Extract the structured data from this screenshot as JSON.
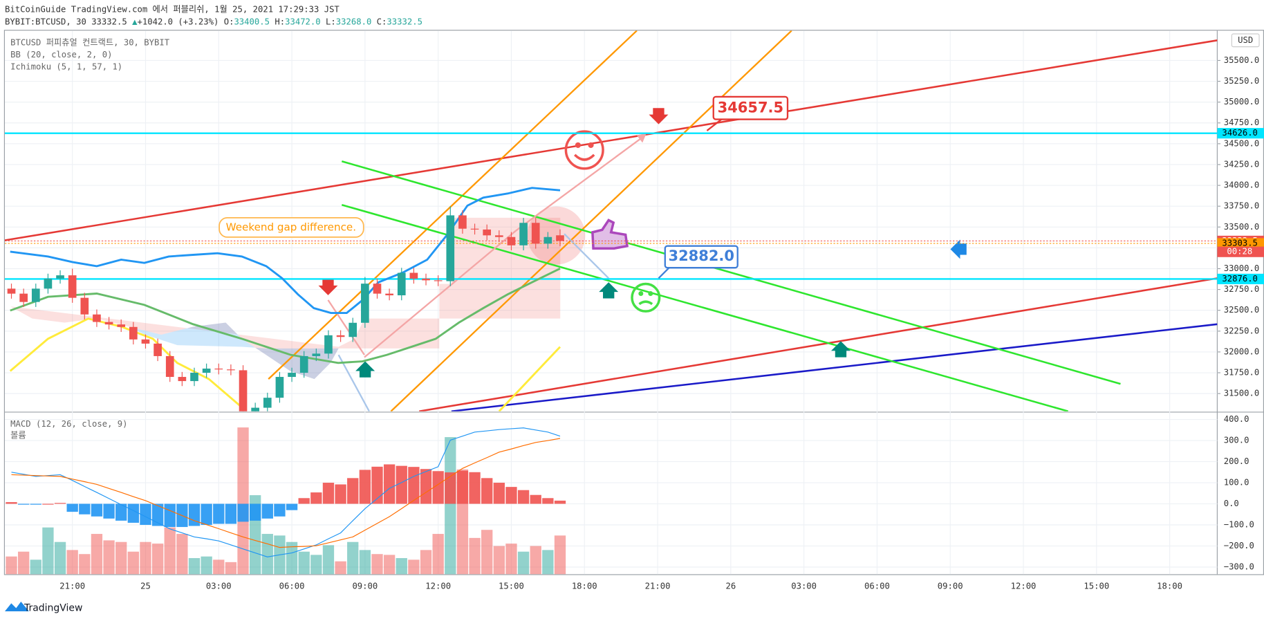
{
  "header": {
    "title": "BitCoinGuide TradingView.com 에서 퍼블리쉬, 1월 25, 2021 17:29:33 JST",
    "symbol": "BYBIT:BTCUSD, 30",
    "last": "33332.5",
    "arrow": "▲",
    "change": "+1042.0 (+3.23%)",
    "ohlc": [
      {
        "key": "O:",
        "value": "33400.5"
      },
      {
        "key": "H:",
        "value": "33472.0"
      },
      {
        "key": "L:",
        "value": "33268.0"
      },
      {
        "key": "C:",
        "value": "33332.5"
      }
    ],
    "legend": [
      "BTCUSD 퍼피츄얼 컨트랙트, 30, BYBIT",
      "BB (20, close, 2, 0)",
      "Ichimoku (5, 1, 57, 1)"
    ],
    "lower_legend": [
      "MACD (12, 26, close, 9)",
      "볼륨"
    ],
    "currency": "USD",
    "brand": "TradingView"
  },
  "chart_data": {
    "type": "candlestick",
    "x": [
      1,
      2,
      3,
      4,
      5,
      6,
      7,
      8,
      9,
      10,
      11,
      12,
      13,
      14,
      15,
      16,
      17,
      18,
      19,
      20,
      21,
      22,
      23,
      24,
      25,
      26,
      27,
      28,
      29,
      30,
      31,
      32,
      33,
      34,
      35,
      36,
      37,
      38,
      39,
      40,
      41,
      42,
      43,
      44,
      45,
      46
    ],
    "open": [
      32760,
      32700,
      32600,
      32760,
      32880,
      32920,
      32650,
      32450,
      32360,
      32330,
      32300,
      32150,
      32100,
      31950,
      31700,
      31650,
      31750,
      31800,
      31790,
      31780,
      31200,
      31330,
      31450,
      31700,
      31750,
      31950,
      31980,
      32200,
      32180,
      32350,
      32820,
      32700,
      32680,
      32950,
      32880,
      32860,
      32850,
      33640,
      33480,
      33470,
      33400,
      33380,
      33280,
      33550,
      33300,
      33400.5
    ],
    "high": [
      32820,
      32760,
      32820,
      32940,
      32980,
      33000,
      32710,
      32510,
      32420,
      32390,
      32360,
      32210,
      32160,
      32010,
      31760,
      31810,
      31860,
      31860,
      31850,
      31840,
      31390,
      31510,
      31760,
      31810,
      32010,
      32040,
      32260,
      32260,
      32410,
      32900,
      32880,
      32760,
      33010,
      33010,
      32940,
      32920,
      33750,
      33700,
      33540,
      33530,
      33460,
      33440,
      33610,
      33610,
      33440,
      33472
    ],
    "low": [
      32640,
      32540,
      32540,
      32700,
      32820,
      32590,
      32390,
      32300,
      32270,
      32240,
      32090,
      32040,
      31890,
      31640,
      31590,
      31590,
      31690,
      31730,
      31720,
      31100,
      31140,
      31270,
      31390,
      31640,
      31690,
      31890,
      31920,
      32120,
      32120,
      32290,
      32640,
      32620,
      32620,
      32820,
      32800,
      32790,
      32790,
      33420,
      33410,
      33340,
      33320,
      33220,
      33220,
      33240,
      33240,
      33268
    ],
    "close": [
      32700,
      32600,
      32760,
      32880,
      32920,
      32650,
      32450,
      32360,
      32330,
      32300,
      32150,
      32100,
      31950,
      31700,
      31650,
      31750,
      31800,
      31790,
      31780,
      31200,
      31330,
      31450,
      31700,
      31750,
      31950,
      31980,
      32200,
      32180,
      32350,
      32820,
      32700,
      32680,
      32950,
      32880,
      32860,
      32850,
      33640,
      33480,
      33470,
      33400,
      33380,
      33280,
      33550,
      33300,
      33380,
      33332.5
    ],
    "up_color": "#26a69a",
    "down_color": "#ef5350",
    "overlays": [
      {
        "name": "BB",
        "color": "#2196f3",
        "x": [
          0.9,
          4.0,
          6.0,
          8.0,
          10.0,
          11.9,
          13.9,
          15.9,
          17.9,
          19.9,
          21.9,
          23.2,
          24.5,
          25.8,
          27.2,
          28.5,
          29.8,
          31.1,
          33.1,
          35.1,
          36.8,
          38.4,
          39.7,
          41.7,
          43.7,
          46.0
        ],
        "values": [
          33204,
          33146,
          33079,
          33030,
          33108,
          33069,
          33146,
          33166,
          33185,
          33146,
          33030,
          32885,
          32691,
          32526,
          32468,
          32468,
          32623,
          32836,
          32953,
          33108,
          33418,
          33757,
          33853,
          33902,
          33970,
          33941
        ]
      },
      {
        "name": "Ichimoku",
        "color": "#66bb6a",
        "x": [
          0.9,
          4.0,
          8.0,
          11.9,
          15.9,
          19.9,
          23.9,
          27.8,
          29.8,
          31.8,
          33.8,
          35.8,
          37.7,
          39.7,
          41.7,
          43.7,
          46.0
        ],
        "values": [
          32497,
          32662,
          32701,
          32565,
          32333,
          32158,
          31965,
          31868,
          31887,
          31965,
          32061,
          32158,
          32352,
          32526,
          32691,
          32836,
          33001
        ]
      },
      {
        "name": "Lagging",
        "color": "#ffeb3b",
        "x": [
          0.9,
          4.0,
          7.3,
          10.0,
          12.6,
          14.6,
          17.2,
          19.9,
          null,
          41.0,
          46.0
        ],
        "values": [
          31771,
          32158,
          32400,
          32304,
          32158,
          31868,
          31674,
          31335,
          null,
          31287,
          32061
        ]
      }
    ],
    "xlim": [
      0.46,
      99.9
    ],
    "xticks": [
      {
        "value": 6,
        "label": "21:00"
      },
      {
        "value": 12,
        "label": "25"
      },
      {
        "value": 18,
        "label": "03:00"
      },
      {
        "value": 24,
        "label": "06:00"
      },
      {
        "value": 30,
        "label": "09:00"
      },
      {
        "value": 36,
        "label": "12:00"
      },
      {
        "value": 42,
        "label": "15:00"
      },
      {
        "value": 48,
        "label": "18:00"
      },
      {
        "value": 54,
        "label": "21:00"
      },
      {
        "value": 60,
        "label": "26"
      },
      {
        "value": 66,
        "label": "03:00"
      },
      {
        "value": 72,
        "label": "06:00"
      },
      {
        "value": 78,
        "label": "09:00"
      },
      {
        "value": 84,
        "label": "12:00"
      },
      {
        "value": 90,
        "label": "15:00"
      },
      {
        "value": 96,
        "label": "18:00"
      }
    ],
    "ylim": [
      31287,
      35858
    ],
    "yticks": [
      {
        "value": 31500,
        "label": "31500.0"
      },
      {
        "value": 31750,
        "label": "31750.0"
      },
      {
        "value": 32000,
        "label": "32000.0"
      },
      {
        "value": 32250,
        "label": "32250.0"
      },
      {
        "value": 32500,
        "label": "32500.0"
      },
      {
        "value": 32750,
        "label": "32750.0"
      },
      {
        "value": 33000,
        "label": "33000.0"
      },
      {
        "value": 33250,
        "label": "33250.0"
      },
      {
        "value": 33500,
        "label": "33500.0"
      },
      {
        "value": 33750,
        "label": "33750.0"
      },
      {
        "value": 34000,
        "label": "34000.0"
      },
      {
        "value": 34250,
        "label": "34250.0"
      },
      {
        "value": 34500,
        "label": "34500.0"
      },
      {
        "value": 34750,
        "label": "34750.0"
      },
      {
        "value": 35000,
        "label": "35000.0"
      },
      {
        "value": 35250,
        "label": "35250.0"
      },
      {
        "value": 35500,
        "label": "35500.0"
      }
    ],
    "grid": true,
    "price_labels": [
      {
        "value": 34626,
        "label": "34626.0",
        "color": "#00e5ff",
        "text_color": "#000000"
      },
      {
        "value": 33332.5,
        "label": "33332.5",
        "color": "#ef5350",
        "text_color": "#ffffff"
      },
      {
        "value": 33303.5,
        "label": "33303.5",
        "color": "#ff9800",
        "text_color": "#000000"
      },
      {
        "value": 32876,
        "label": "32876.0",
        "color": "#00e5ff",
        "text_color": "#000000"
      }
    ],
    "countdown": "00:28",
    "annotations": [
      {
        "text": "34657.5",
        "color": "#e53935"
      },
      {
        "text": "32882.0",
        "color": "#3f7fd8"
      },
      {
        "text": "Weekend gap difference.",
        "color": "#ff9800"
      }
    ],
    "macd": {
      "macd": [
        150,
        140,
        130,
        134,
        138,
        111,
        82,
        54,
        25,
        -4,
        -32,
        -61,
        -90,
        -119,
        -138,
        -157,
        -166,
        -176,
        -195,
        -214,
        -233,
        -252,
        -242,
        -233,
        -214,
        -195,
        -166,
        -138,
        -80,
        -23,
        25,
        73,
        101,
        130,
        153,
        176,
        302,
        321,
        340,
        346,
        352,
        356,
        360,
        350,
        340,
        321
      ],
      "signal": [
        138,
        136,
        134,
        132,
        130,
        117,
        105,
        92,
        73,
        54,
        34,
        15,
        -9,
        -32,
        -56,
        -80,
        -99,
        -118,
        -138,
        -157,
        -174,
        -190,
        -207,
        -204,
        -202,
        -199,
        -185,
        -171,
        -157,
        -125,
        -93,
        -61,
        -23,
        16,
        54,
        92,
        130,
        168,
        194,
        219,
        245,
        260,
        276,
        291,
        300,
        310
      ],
      "histogram": [
        8,
        -4,
        -4,
        0,
        4,
        -38,
        -50,
        -60,
        -70,
        -80,
        -90,
        -100,
        -105,
        -110,
        -110,
        -105,
        -100,
        -95,
        -95,
        -85,
        -80,
        -70,
        -60,
        -30,
        27,
        54,
        100,
        92,
        122,
        161,
        176,
        187,
        180,
        175,
        165,
        155,
        149,
        157,
        150,
        122,
        100,
        80,
        65,
        42,
        27,
        15
      ],
      "macd_color": "#2196f3",
      "signal_color": "#ff6d00",
      "pos_color": "#ef5350",
      "neg_color": "#2196f3",
      "ylim": [
        -334,
        431
      ],
      "yticks": [
        {
          "value": -300,
          "label": "−300.0"
        },
        {
          "value": -200,
          "label": "−200.0"
        },
        {
          "value": -100,
          "label": "−100.0"
        },
        {
          "value": 0,
          "label": "0.0"
        },
        {
          "value": 100,
          "label": "100.0"
        },
        {
          "value": 200,
          "label": "200.0"
        },
        {
          "value": 300,
          "label": "300.0"
        },
        {
          "value": 400,
          "label": "400.0"
        }
      ]
    },
    "volume": {
      "values": [
        22,
        28,
        18,
        58,
        40,
        30,
        25,
        50,
        42,
        40,
        28,
        40,
        38,
        58,
        50,
        20,
        22,
        18,
        15,
        182,
        98,
        50,
        48,
        40,
        28,
        24,
        36,
        16,
        40,
        30,
        25,
        24,
        20,
        18,
        30,
        50,
        170,
        130,
        45,
        55,
        35,
        38,
        28,
        35,
        30,
        48
      ],
      "vlim": [
        0,
        200
      ]
    }
  }
}
